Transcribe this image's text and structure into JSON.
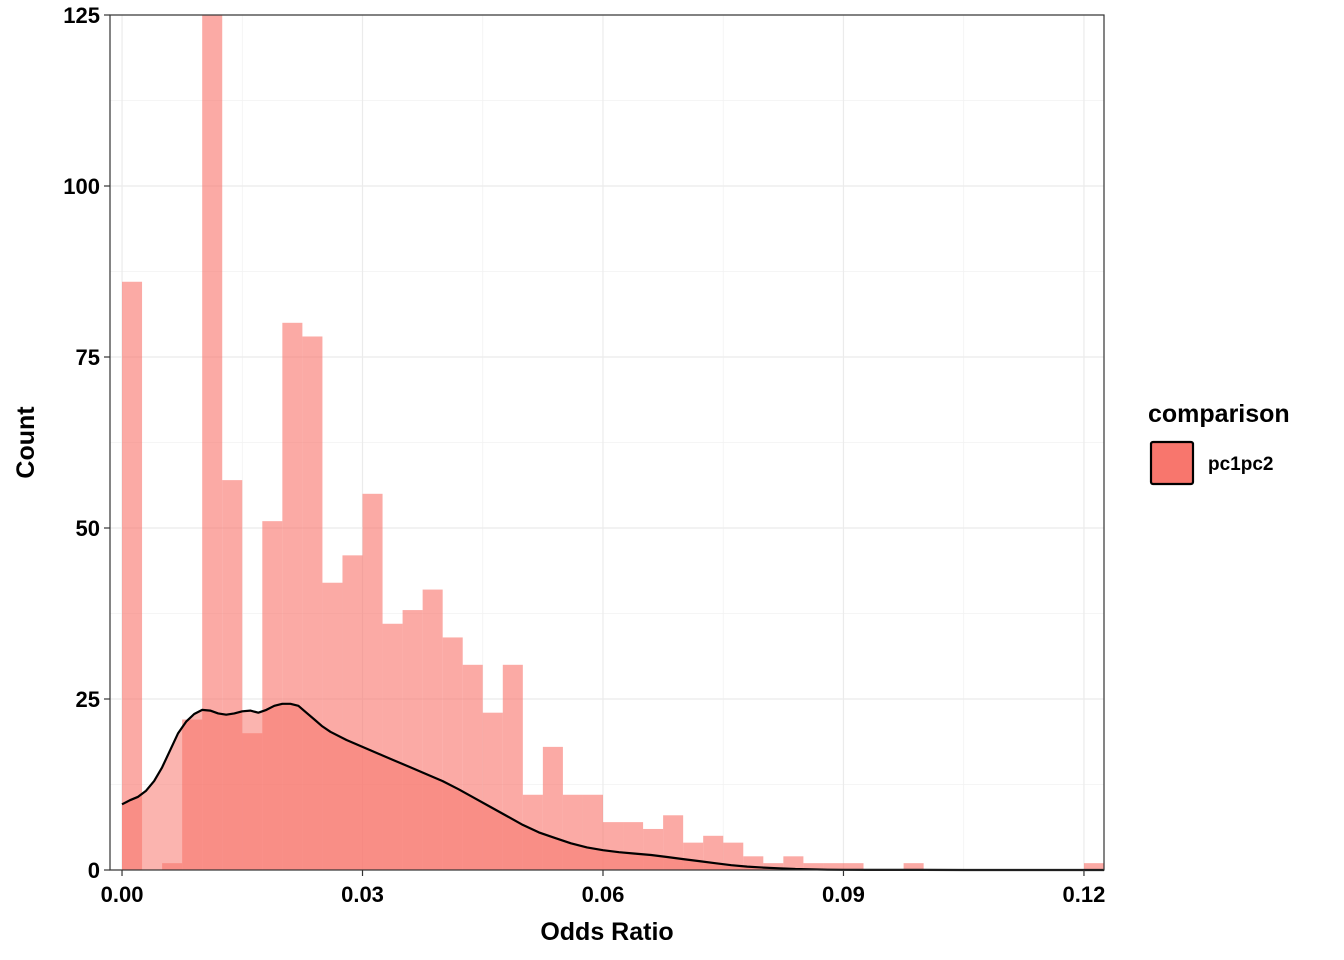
{
  "chart_data": {
    "type": "bar",
    "subtype": "histogram-with-density",
    "xlabel": "Odds Ratio",
    "ylabel": "Count",
    "xlim": [
      -0.0015,
      0.1225
    ],
    "ylim": [
      0,
      125
    ],
    "x_ticks": [
      0.0,
      0.03,
      0.06,
      0.09,
      0.12
    ],
    "x_tick_labels": [
      "0.00",
      "0.03",
      "0.06",
      "0.09",
      "0.12"
    ],
    "y_ticks": [
      0,
      25,
      50,
      75,
      100,
      125
    ],
    "y_tick_labels": [
      "0",
      "25",
      "50",
      "75",
      "100",
      "125"
    ],
    "grid": true,
    "legend": {
      "title": "comparison",
      "position": "right",
      "entries": [
        {
          "label": "pc1pc2",
          "color": "#F8766D"
        }
      ]
    },
    "bin_width": 0.0025,
    "series": [
      {
        "name": "pc1pc2",
        "color": "#F8766D",
        "bins": {
          "x_start": [
            0.0,
            0.0025,
            0.005,
            0.0075,
            0.01,
            0.0125,
            0.015,
            0.0175,
            0.02,
            0.0225,
            0.025,
            0.0275,
            0.03,
            0.0325,
            0.035,
            0.0375,
            0.04,
            0.0425,
            0.045,
            0.0475,
            0.05,
            0.0525,
            0.055,
            0.0575,
            0.06,
            0.0625,
            0.065,
            0.0675,
            0.07,
            0.0725,
            0.075,
            0.0775,
            0.08,
            0.0825,
            0.085,
            0.0875,
            0.09,
            0.0925,
            0.095,
            0.0975,
            0.1,
            0.1025,
            0.105,
            0.1075,
            0.11,
            0.1125,
            0.115,
            0.1175,
            0.12
          ],
          "counts": [
            86,
            0,
            1,
            22,
            127,
            57,
            20,
            51,
            80,
            78,
            42,
            46,
            55,
            36,
            38,
            41,
            34,
            30,
            23,
            30,
            11,
            18,
            11,
            11,
            7,
            7,
            6,
            8,
            4,
            5,
            4,
            2,
            1,
            2,
            1,
            1,
            1,
            0,
            0,
            1,
            0,
            0,
            0,
            0,
            0,
            0,
            0,
            0,
            1
          ]
        },
        "density_curve": {
          "x": [
            0.0,
            0.001,
            0.002,
            0.003,
            0.004,
            0.005,
            0.006,
            0.007,
            0.008,
            0.009,
            0.01,
            0.011,
            0.012,
            0.013,
            0.014,
            0.015,
            0.016,
            0.017,
            0.018,
            0.019,
            0.02,
            0.021,
            0.022,
            0.023,
            0.024,
            0.025,
            0.026,
            0.028,
            0.03,
            0.032,
            0.034,
            0.036,
            0.038,
            0.04,
            0.042,
            0.044,
            0.046,
            0.048,
            0.05,
            0.052,
            0.054,
            0.056,
            0.058,
            0.06,
            0.062,
            0.064,
            0.066,
            0.068,
            0.07,
            0.072,
            0.074,
            0.076,
            0.078,
            0.08,
            0.082,
            0.084,
            0.086,
            0.088,
            0.09,
            0.093,
            0.096,
            0.1,
            0.105,
            0.11,
            0.115,
            0.12,
            0.1225
          ],
          "y": [
            9.6,
            10.2,
            10.7,
            11.6,
            13.0,
            15.0,
            17.5,
            20.0,
            21.7,
            22.8,
            23.4,
            23.3,
            22.9,
            22.7,
            22.9,
            23.2,
            23.3,
            23.0,
            23.4,
            24.0,
            24.3,
            24.3,
            24.0,
            23.0,
            22.0,
            21.0,
            20.2,
            19.0,
            18.0,
            17.0,
            16.0,
            15.0,
            14.0,
            13.0,
            11.8,
            10.5,
            9.2,
            7.9,
            6.6,
            5.5,
            4.7,
            3.9,
            3.3,
            2.9,
            2.6,
            2.4,
            2.2,
            1.9,
            1.6,
            1.3,
            1.0,
            0.7,
            0.5,
            0.35,
            0.25,
            0.15,
            0.1,
            0.05,
            0.03,
            0.02,
            0.01,
            0.01,
            0.0,
            0.0,
            0.0,
            0.0,
            0.0
          ]
        }
      }
    ]
  }
}
